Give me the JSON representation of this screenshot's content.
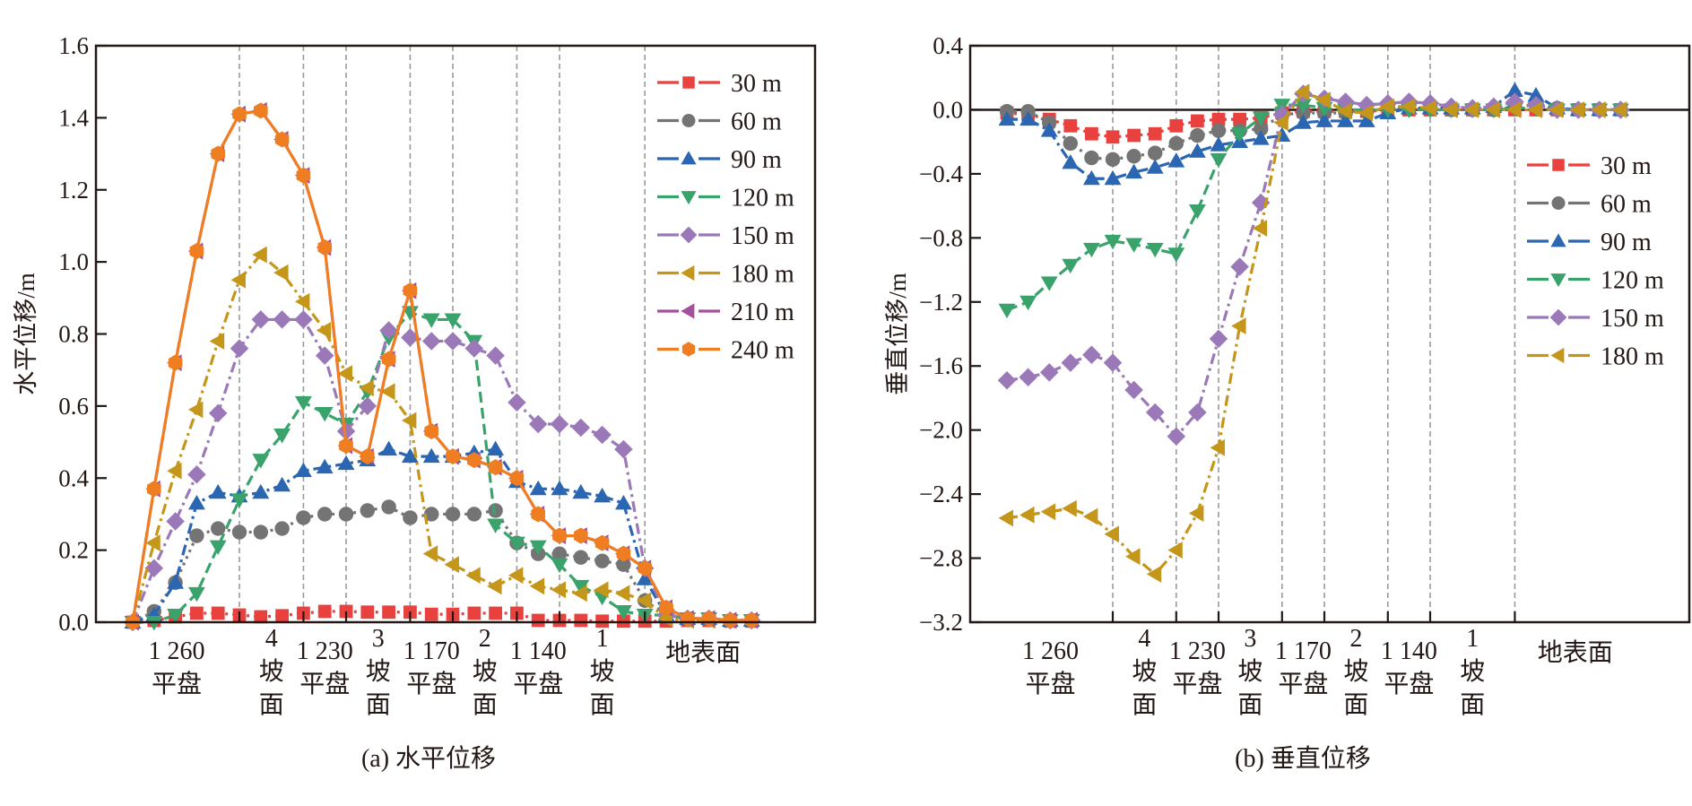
{
  "chart_data": [
    {
      "type": "line",
      "id": "a",
      "caption": "(a) 水平位移",
      "ylabel": "水平位移/m",
      "xlabel": "",
      "ylim": [
        0.0,
        1.6
      ],
      "yticks": [
        "0.0",
        "0.2",
        "0.4",
        "0.6",
        "0.8",
        "1.0",
        "1.2",
        "1.4",
        "1.6"
      ],
      "ytick_values": [
        0,
        0.2,
        0.4,
        0.6,
        0.8,
        1.0,
        1.2,
        1.4,
        1.6
      ],
      "grid": "vertical dashed dividers between benches/slopes",
      "legend_position": "top-right",
      "n_points": 30,
      "divider_after_index": [
        5,
        8,
        10,
        13,
        15,
        18,
        20,
        24
      ],
      "categories": [
        {
          "lines": [
            "1 260",
            "平盘"
          ]
        },
        {
          "lines": [
            "4",
            "坡",
            "面"
          ]
        },
        {
          "lines": [
            "1 230",
            "平盘"
          ]
        },
        {
          "lines": [
            "3",
            "坡",
            "面"
          ]
        },
        {
          "lines": [
            "1 170",
            "平盘"
          ]
        },
        {
          "lines": [
            "2",
            "坡",
            "面"
          ]
        },
        {
          "lines": [
            "1 140",
            "平盘"
          ]
        },
        {
          "lines": [
            "1",
            "坡",
            "面"
          ]
        },
        {
          "lines": [
            "地表面"
          ]
        }
      ],
      "series": [
        {
          "name": "30 m",
          "color": "#e8413e",
          "marker": "square",
          "dash": "dot",
          "values": [
            0,
            0.005,
            0.015,
            0.025,
            0.025,
            0.02,
            0.015,
            0.018,
            0.025,
            0.03,
            0.03,
            0.028,
            0.028,
            0.028,
            0.022,
            0.022,
            0.025,
            0.025,
            0.025,
            0.005,
            0.005,
            0.005,
            0.003,
            0.003,
            0.003,
            0.003,
            0.005,
            0.005,
            0.003,
            0.003
          ]
        },
        {
          "name": "60 m",
          "color": "#747474",
          "marker": "circle",
          "dash": "dot",
          "values": [
            0,
            0.03,
            0.11,
            0.24,
            0.26,
            0.25,
            0.25,
            0.26,
            0.29,
            0.3,
            0.3,
            0.31,
            0.32,
            0.29,
            0.3,
            0.3,
            0.3,
            0.31,
            0.22,
            0.19,
            0.19,
            0.18,
            0.17,
            0.16,
            0.06,
            0.02,
            0.01,
            0.01,
            0.005,
            0.005
          ]
        },
        {
          "name": "90 m",
          "color": "#2a66b1",
          "marker": "triangle-up",
          "dash": "dashdot",
          "values": [
            0,
            0.02,
            0.11,
            0.33,
            0.36,
            0.35,
            0.36,
            0.38,
            0.42,
            0.43,
            0.44,
            0.45,
            0.48,
            0.46,
            0.46,
            0.46,
            0.47,
            0.48,
            0.39,
            0.37,
            0.37,
            0.36,
            0.35,
            0.33,
            0.12,
            0.02,
            0.01,
            0.01,
            0.005,
            0.005
          ]
        },
        {
          "name": "120 m",
          "color": "#3aa36c",
          "marker": "triangle-down",
          "dash": "dash",
          "values": [
            0,
            0.0,
            0.02,
            0.08,
            0.21,
            0.34,
            0.45,
            0.52,
            0.61,
            0.58,
            0.55,
            0.64,
            0.79,
            0.86,
            0.84,
            0.84,
            0.78,
            0.27,
            0.22,
            0.21,
            0.16,
            0.1,
            0.07,
            0.03,
            0.02,
            0.02,
            0.01,
            0.01,
            0.005,
            0.005
          ]
        },
        {
          "name": "150 m",
          "color": "#9b79b8",
          "marker": "diamond",
          "dash": "dashdot",
          "values": [
            0,
            0.15,
            0.28,
            0.41,
            0.58,
            0.76,
            0.84,
            0.84,
            0.84,
            0.74,
            0.53,
            0.6,
            0.81,
            0.79,
            0.78,
            0.78,
            0.76,
            0.74,
            0.61,
            0.55,
            0.55,
            0.54,
            0.52,
            0.48,
            0.15,
            0.02,
            0.01,
            0.01,
            0.005,
            0.005
          ]
        },
        {
          "name": "180 m",
          "color": "#c4961a",
          "marker": "triangle-left",
          "dash": "dashdot",
          "values": [
            0,
            0.22,
            0.42,
            0.59,
            0.78,
            0.95,
            1.02,
            0.97,
            0.89,
            0.81,
            0.69,
            0.65,
            0.64,
            0.56,
            0.19,
            0.16,
            0.13,
            0.1,
            0.13,
            0.1,
            0.09,
            0.08,
            0.09,
            0.08,
            0.06,
            0.01,
            0.005,
            0.005,
            0.005,
            0.005
          ]
        },
        {
          "name": "210 m",
          "color": "#a64f9d",
          "marker": "triangle-left",
          "dash": "dash",
          "values": [
            0,
            0.37,
            0.72,
            1.03,
            1.3,
            1.41,
            1.42,
            1.34,
            1.24,
            1.04,
            0.49,
            0.46,
            0.73,
            0.92,
            0.53,
            0.46,
            0.45,
            0.43,
            0.4,
            0.3,
            0.24,
            0.24,
            0.22,
            0.19,
            0.15,
            0.04,
            0.01,
            0.01,
            0.005,
            0.005
          ]
        },
        {
          "name": "240 m",
          "color": "#ef7d22",
          "marker": "hexagon",
          "dash": "solid",
          "values": [
            0,
            0.37,
            0.72,
            1.03,
            1.3,
            1.41,
            1.42,
            1.34,
            1.24,
            1.04,
            0.49,
            0.46,
            0.73,
            0.92,
            0.53,
            0.46,
            0.45,
            0.43,
            0.4,
            0.3,
            0.24,
            0.24,
            0.22,
            0.19,
            0.15,
            0.04,
            0.01,
            0.01,
            0.005,
            0.005
          ]
        }
      ]
    },
    {
      "type": "line",
      "id": "b",
      "caption": "(b) 垂直位移",
      "ylabel": "垂直位移/m",
      "xlabel": "",
      "ylim": [
        -3.2,
        0.4
      ],
      "yticks": [
        "0.4",
        "0.0",
        "−0.4",
        "−0.8",
        "−1.2",
        "−1.6",
        "−2.0",
        "−2.4",
        "−2.8",
        "−3.2"
      ],
      "ytick_values": [
        0.4,
        0.0,
        -0.4,
        -0.8,
        -1.2,
        -1.6,
        -2.0,
        -2.4,
        -2.8,
        -3.2
      ],
      "grid": "vertical dashed dividers between benches/slopes; solid zero line",
      "legend_position": "right",
      "n_points": 30,
      "divider_after_index": [
        5,
        8,
        10,
        13,
        15,
        18,
        20,
        24
      ],
      "categories": [
        {
          "lines": [
            "1 260",
            "平盘"
          ]
        },
        {
          "lines": [
            "4",
            "坡",
            "面"
          ]
        },
        {
          "lines": [
            "1 230",
            "平盘"
          ]
        },
        {
          "lines": [
            "3",
            "坡",
            "面"
          ]
        },
        {
          "lines": [
            "1 170",
            "平盘"
          ]
        },
        {
          "lines": [
            "2",
            "坡",
            "面"
          ]
        },
        {
          "lines": [
            "1 140",
            "平盘"
          ]
        },
        {
          "lines": [
            "1",
            "坡",
            "面"
          ]
        },
        {
          "lines": [
            "地表面"
          ]
        }
      ],
      "series": [
        {
          "name": "30 m",
          "color": "#e8413e",
          "marker": "square",
          "dash": "dot",
          "values": [
            -0.02,
            -0.03,
            -0.06,
            -0.1,
            -0.15,
            -0.17,
            -0.16,
            -0.15,
            -0.1,
            -0.07,
            -0.06,
            -0.06,
            -0.05,
            -0.02,
            -0.01,
            -0.01,
            -0.01,
            -0.01,
            0.0,
            0.0,
            0.0,
            0.0,
            0.0,
            0.0,
            0.0,
            0.0,
            0.0,
            0.0,
            0.0,
            0.0
          ]
        },
        {
          "name": "60 m",
          "color": "#747474",
          "marker": "circle",
          "dash": "dot",
          "values": [
            -0.01,
            -0.01,
            -0.08,
            -0.21,
            -0.3,
            -0.31,
            -0.29,
            -0.27,
            -0.21,
            -0.16,
            -0.13,
            -0.13,
            -0.12,
            -0.03,
            -0.02,
            -0.02,
            -0.02,
            -0.01,
            0.01,
            0.01,
            0.01,
            0.0,
            0.0,
            0.0,
            0.02,
            0.03,
            0.01,
            0.0,
            0.0,
            0.0
          ]
        },
        {
          "name": "90 m",
          "color": "#2a66b1",
          "marker": "triangle-up",
          "dash": "dashdot",
          "values": [
            -0.06,
            -0.06,
            -0.13,
            -0.33,
            -0.43,
            -0.43,
            -0.39,
            -0.36,
            -0.32,
            -0.26,
            -0.22,
            -0.2,
            -0.18,
            -0.16,
            -0.08,
            -0.07,
            -0.07,
            -0.07,
            -0.02,
            0.01,
            0.01,
            0.01,
            0.01,
            0.02,
            0.12,
            0.09,
            0.01,
            0.0,
            0.0,
            0.0
          ]
        },
        {
          "name": "120 m",
          "color": "#3aa36c",
          "marker": "triangle-down",
          "dash": "dash",
          "values": [
            -1.25,
            -1.2,
            -1.08,
            -0.97,
            -0.87,
            -0.82,
            -0.84,
            -0.87,
            -0.9,
            -0.63,
            -0.31,
            -0.15,
            -0.05,
            0.03,
            0.03,
            0.01,
            0.0,
            0.0,
            0.0,
            0.0,
            0.0,
            0.0,
            0.0,
            0.0,
            0.01,
            0.01,
            0.0,
            0.0,
            0.0,
            0.0
          ]
        },
        {
          "name": "150 m",
          "color": "#9b79b8",
          "marker": "diamond",
          "dash": "dashdot",
          "values": [
            -1.69,
            -1.67,
            -1.64,
            -1.58,
            -1.53,
            -1.58,
            -1.75,
            -1.89,
            -2.04,
            -1.89,
            -1.43,
            -0.98,
            -0.58,
            -0.03,
            0.1,
            0.07,
            0.05,
            0.03,
            0.04,
            0.05,
            0.04,
            0.02,
            0.01,
            0.02,
            0.05,
            0.03,
            0.0,
            0.0,
            0.0,
            0.0
          ]
        },
        {
          "name": "180 m",
          "color": "#c4961a",
          "marker": "triangle-left",
          "dash": "dashdot",
          "values": [
            -2.55,
            -2.53,
            -2.51,
            -2.49,
            -2.54,
            -2.65,
            -2.79,
            -2.9,
            -2.75,
            -2.52,
            -2.11,
            -1.35,
            -0.74,
            -0.08,
            0.11,
            0.06,
            -0.01,
            -0.02,
            0.02,
            0.02,
            0.01,
            0.0,
            0.0,
            0.0,
            0.0,
            0.0,
            0.0,
            0.0,
            0.0,
            0.0
          ]
        }
      ]
    }
  ]
}
